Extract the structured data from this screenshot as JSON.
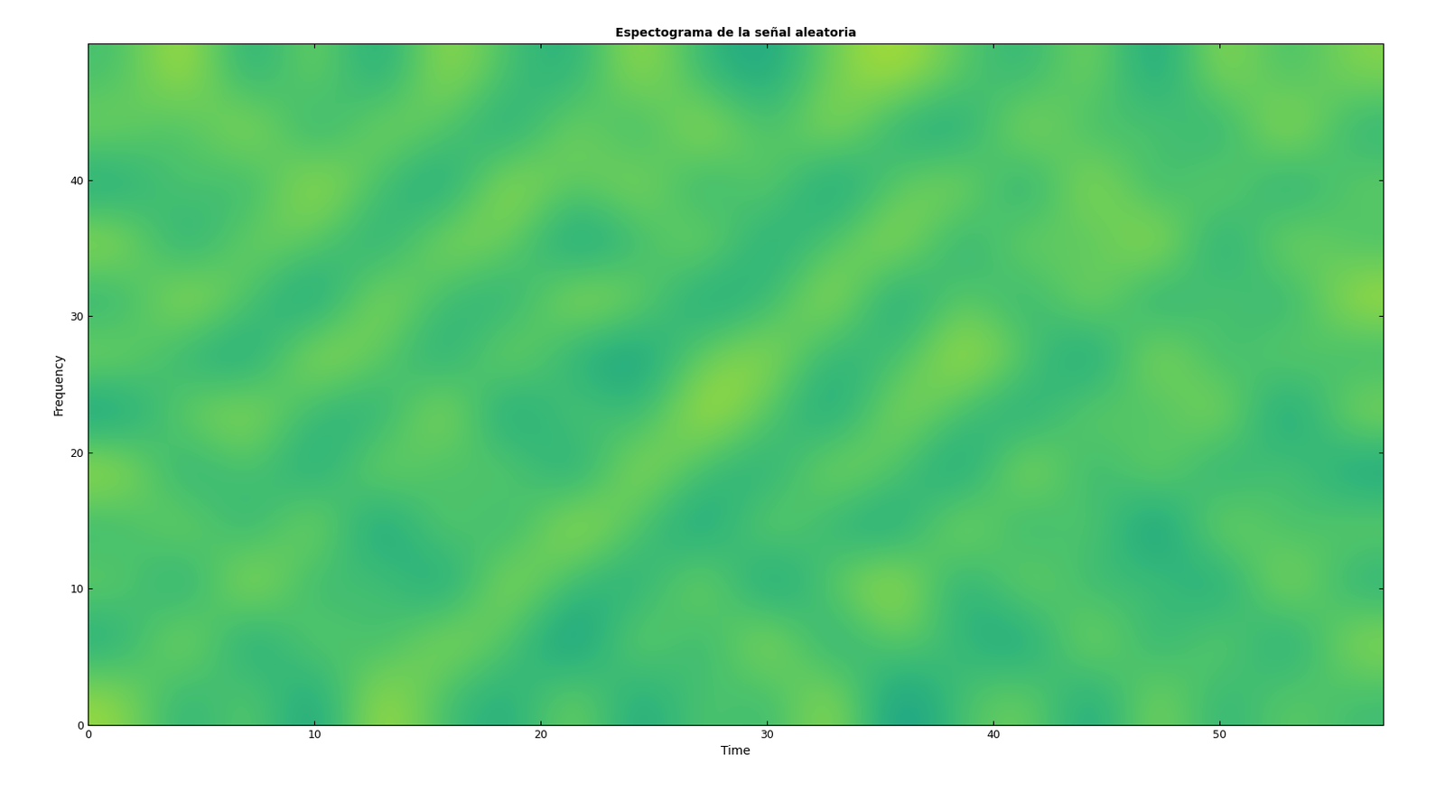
{
  "chart_data": {
    "type": "heatmap",
    "title": "Espectograma de la señal aleatoria",
    "x_label": "Time",
    "y_label": "Frequency",
    "xlim": [
      0,
      57.2
    ],
    "ylim": [
      0,
      50
    ],
    "xticks": [
      0,
      10,
      20,
      30,
      40,
      50
    ],
    "yticks": [
      0,
      10,
      20,
      30,
      40
    ],
    "color": "viridis",
    "zlim": [
      0,
      1
    ],
    "cells": [
      [
        0.85,
        0.62,
        0.78,
        0.55,
        0.9,
        0.7,
        0.6,
        0.82,
        0.58,
        0.75,
        0.66,
        0.88,
        0.52,
        0.72,
        0.8,
        0.57,
        0.84,
        0.63,
        0.77,
        0.69
      ],
      [
        0.6,
        0.88,
        0.55,
        0.8,
        0.65,
        0.86,
        0.74,
        0.5,
        0.83,
        0.62,
        0.9,
        0.58,
        0.79,
        0.66,
        0.55,
        0.87,
        0.61,
        0.81,
        0.56,
        0.85
      ],
      [
        0.78,
        0.57,
        0.92,
        0.63,
        0.75,
        0.54,
        0.88,
        0.68,
        0.6,
        0.86,
        0.52,
        0.77,
        0.91,
        0.58,
        0.84,
        0.64,
        0.73,
        0.55,
        0.89,
        0.62
      ],
      [
        0.66,
        0.83,
        0.61,
        0.87,
        0.52,
        0.8,
        0.62,
        0.91,
        0.72,
        0.55,
        0.82,
        0.64,
        0.57,
        0.88,
        0.61,
        0.79,
        0.5,
        0.86,
        0.67,
        0.78
      ],
      [
        0.89,
        0.6,
        0.74,
        0.58,
        0.84,
        0.67,
        0.79,
        0.56,
        0.88,
        0.69,
        0.6,
        0.85,
        0.73,
        0.54,
        0.9,
        0.62,
        0.83,
        0.59,
        0.76,
        0.57
      ],
      [
        0.55,
        0.79,
        0.86,
        0.66,
        0.61,
        0.9,
        0.53,
        0.77,
        0.64,
        0.92,
        0.74,
        0.56,
        0.86,
        0.7,
        0.58,
        0.81,
        0.67,
        0.88,
        0.52,
        0.84
      ],
      [
        0.82,
        0.64,
        0.57,
        0.89,
        0.76,
        0.59,
        0.85,
        0.62,
        0.55,
        0.78,
        0.87,
        0.63,
        0.69,
        0.91,
        0.75,
        0.53,
        0.89,
        0.64,
        0.8,
        0.66
      ],
      [
        0.63,
        0.9,
        0.72,
        0.54,
        0.87,
        0.68,
        0.61,
        0.88,
        0.8,
        0.57,
        0.66,
        0.9,
        0.55,
        0.78,
        0.62,
        0.86,
        0.58,
        0.77,
        0.61,
        0.89
      ],
      [
        0.87,
        0.58,
        0.81,
        0.75,
        0.6,
        0.85,
        0.78,
        0.55,
        0.67,
        0.84,
        0.59,
        0.73,
        0.88,
        0.6,
        0.83,
        0.69,
        0.92,
        0.56,
        0.85,
        0.7
      ],
      [
        0.59,
        0.76,
        0.63,
        0.91,
        0.7,
        0.56,
        0.9,
        0.72,
        0.86,
        0.61,
        0.8,
        0.54,
        0.76,
        0.85,
        0.57,
        0.9,
        0.63,
        0.82,
        0.58,
        0.77
      ],
      [
        0.8,
        0.68,
        0.89,
        0.6,
        0.83,
        0.74,
        0.58,
        0.84,
        0.63,
        0.9,
        0.68,
        0.87,
        0.62,
        0.59,
        0.88,
        0.66,
        0.76,
        0.6,
        0.91,
        0.64
      ],
      [
        0.7,
        0.91,
        0.59,
        0.82,
        0.57,
        0.88,
        0.7,
        0.61,
        0.89,
        0.66,
        0.58,
        0.79,
        0.9,
        0.74,
        0.64,
        0.83,
        0.55,
        0.87,
        0.68,
        0.82
      ]
    ]
  }
}
